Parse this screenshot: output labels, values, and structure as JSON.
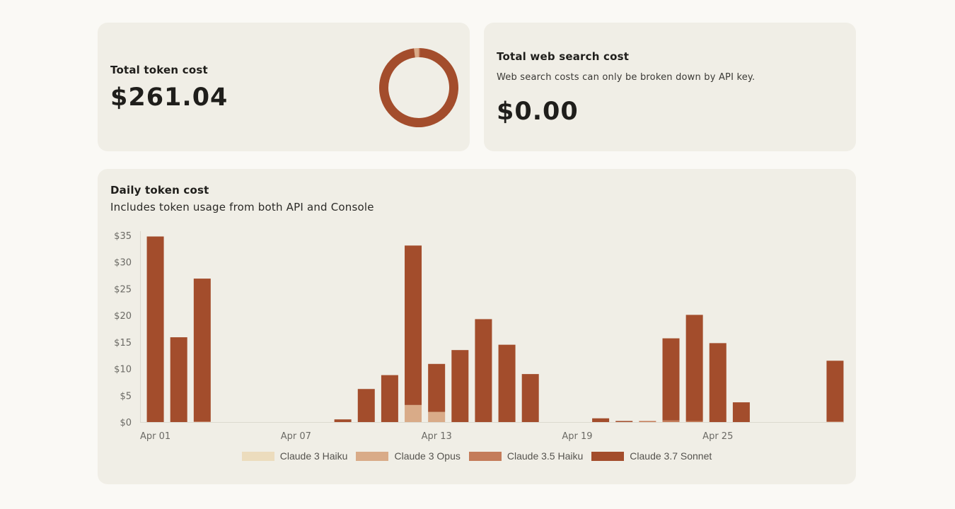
{
  "token_card": {
    "title": "Total token cost",
    "value": "$261.04"
  },
  "web_card": {
    "title": "Total web search cost",
    "subtitle": "Web search costs can only be broken down by API key.",
    "value": "$0.00"
  },
  "daily_card": {
    "title": "Daily token cost",
    "subtitle": "Includes token usage from both API and Console"
  },
  "colors": {
    "claude_3_haiku": "#ecdcbd",
    "claude_3_opus": "#d9ab88",
    "claude_3_5_haiku": "#c47c5a",
    "claude_3_7_sonnet": "#a34d2c",
    "axis": "#dcd9cf"
  },
  "chart_data": [
    {
      "type": "pie",
      "variant": "donut",
      "series": [
        {
          "name": "Claude 3 Haiku",
          "value": 0
        },
        {
          "name": "Claude 3 Opus",
          "value": 5.0
        },
        {
          "name": "Claude 3.5 Haiku",
          "value": 1.2
        },
        {
          "name": "Claude 3.7 Sonnet",
          "value": 254.84
        }
      ]
    },
    {
      "type": "bar",
      "stacked": true,
      "categories": [
        "Apr 01",
        "Apr 02",
        "Apr 03",
        "Apr 04",
        "Apr 05",
        "Apr 06",
        "Apr 07",
        "Apr 08",
        "Apr 09",
        "Apr 10",
        "Apr 11",
        "Apr 12",
        "Apr 13",
        "Apr 14",
        "Apr 15",
        "Apr 16",
        "Apr 17",
        "Apr 18",
        "Apr 19",
        "Apr 20",
        "Apr 21",
        "Apr 22",
        "Apr 23",
        "Apr 24",
        "Apr 25",
        "Apr 26",
        "Apr 27",
        "Apr 28",
        "Apr 29",
        "Apr 30"
      ],
      "x_tick_labels": [
        "Apr 01",
        "Apr 07",
        "Apr 13",
        "Apr 19",
        "Apr 25"
      ],
      "y_tick_labels": [
        "$0",
        "$5",
        "$10",
        "$15",
        "$20",
        "$25",
        "$30",
        "$35"
      ],
      "ylim": [
        0,
        35
      ],
      "series": [
        {
          "name": "Claude 3 Haiku",
          "values": [
            0,
            0,
            0,
            0,
            0,
            0,
            0,
            0,
            0,
            0,
            0,
            0,
            0,
            0,
            0,
            0,
            0,
            0,
            0,
            0,
            0,
            0,
            0,
            0,
            0,
            0,
            0,
            0,
            0,
            0
          ]
        },
        {
          "name": "Claude 3 Opus",
          "values": [
            0,
            0,
            0,
            0,
            0,
            0,
            0,
            0,
            0,
            0,
            0,
            3.2,
            1.9,
            0,
            0,
            0,
            0,
            0,
            0,
            0,
            0,
            0,
            0,
            0,
            0,
            0,
            0,
            0,
            0,
            0
          ]
        },
        {
          "name": "Claude 3.5 Haiku",
          "values": [
            0,
            0,
            0.1,
            0,
            0,
            0,
            0,
            0,
            0,
            0,
            0,
            0,
            0,
            0,
            0,
            0,
            0,
            0,
            0,
            0,
            0,
            0.2,
            0.3,
            0.2,
            0,
            0,
            0,
            0,
            0,
            0.1
          ]
        },
        {
          "name": "Claude 3.7 Sonnet",
          "values": [
            34.8,
            15.9,
            26.8,
            0,
            0,
            0,
            0,
            0,
            0.5,
            6.2,
            8.8,
            29.9,
            9.0,
            13.5,
            19.3,
            14.5,
            9.0,
            0,
            0,
            0.7,
            0.2,
            0,
            15.4,
            19.9,
            14.8,
            3.7,
            0,
            0,
            0,
            11.4
          ]
        }
      ],
      "grid": false,
      "legend": "bottom"
    }
  ]
}
